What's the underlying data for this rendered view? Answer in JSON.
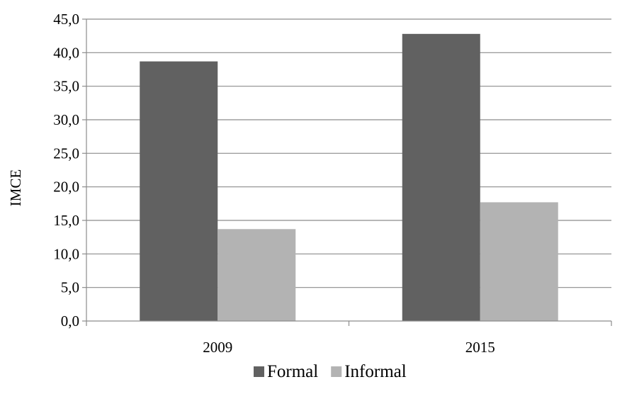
{
  "chart_data": {
    "type": "bar",
    "categories": [
      "2009",
      "2015"
    ],
    "series": [
      {
        "name": "Formal",
        "values": [
          38.7,
          42.8
        ]
      },
      {
        "name": "Informal",
        "values": [
          13.7,
          17.7
        ]
      }
    ],
    "title": "",
    "xlabel": "",
    "ylabel": "IMCE",
    "ylim": [
      0,
      45
    ],
    "yticks": [
      0,
      5,
      10,
      15,
      20,
      25,
      30,
      35,
      40,
      45
    ],
    "ytick_labels": [
      "0,0",
      "5,0",
      "10,0",
      "15,0",
      "20,0",
      "25,0",
      "30,0",
      "35,0",
      "40,0",
      "45,0"
    ],
    "grid": "horizontal",
    "legend_position": "bottom",
    "colors": {
      "Formal": "#616161",
      "Informal": "#b3b3b3",
      "grid": "#8c8c8c",
      "axis": "#8c8c8c"
    }
  }
}
